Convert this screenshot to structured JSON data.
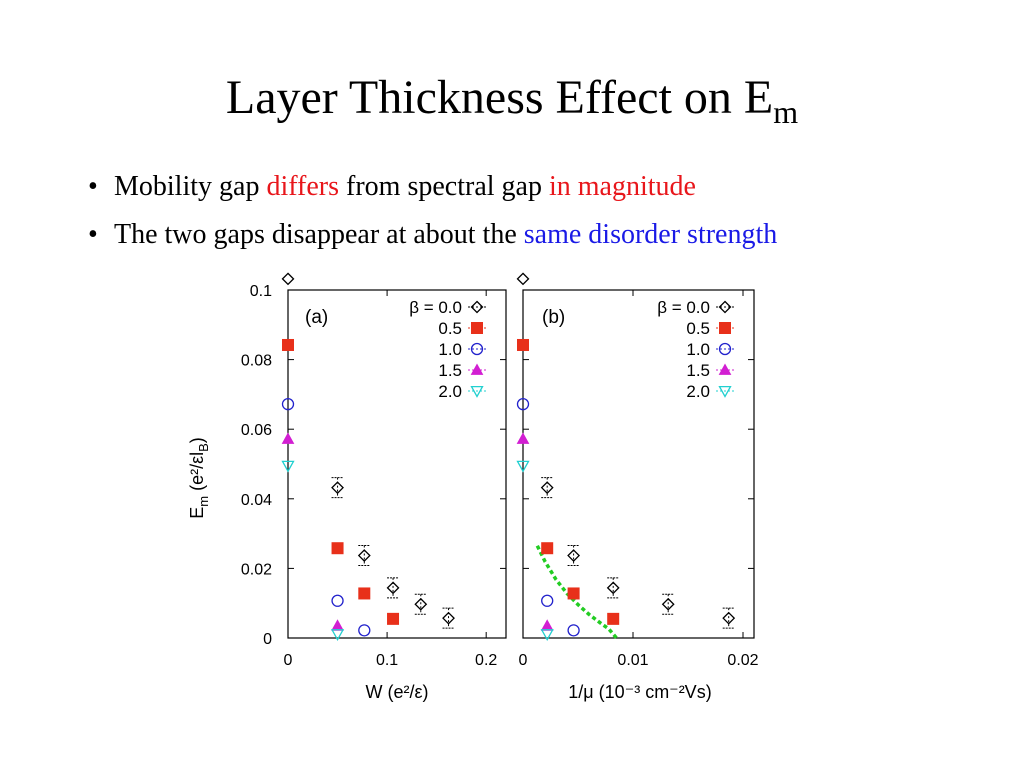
{
  "title": {
    "main": "Layer Thickness Effect on E",
    "sub": "m"
  },
  "bullets": [
    {
      "parts": [
        {
          "text": "Mobility gap ",
          "color": "#000000"
        },
        {
          "text": "differs",
          "color": "#e8161b"
        },
        {
          "text": " from spectral gap ",
          "color": "#000000"
        },
        {
          "text": "in magnitude",
          "color": "#e8161b"
        }
      ]
    },
    {
      "parts": [
        {
          "text": "The two gaps disappear at about the ",
          "color": "#000000"
        },
        {
          "text": "same disorder strength",
          "color": "#1a1ae6"
        }
      ]
    }
  ],
  "chart_data": [
    {
      "type": "scatter",
      "panel_label": "(a)",
      "xlabel": "W (e²/ε)",
      "ylabel": "E",
      "ylabel_sub": "m",
      "ylabel_units": "(e²/εl",
      "ylabel_units_sub": "B",
      "ylabel_close": ")",
      "xlim": [
        0,
        0.22
      ],
      "ylim": [
        0,
        0.1
      ],
      "xticks": [
        0,
        0.1,
        0.2
      ],
      "xtick_labels": [
        "0",
        "0.1",
        "0.2"
      ],
      "yticks": [
        0,
        0.02,
        0.04,
        0.06,
        0.08,
        0.1
      ],
      "ytick_labels": [
        "0",
        "0.02",
        "0.04",
        "0.06",
        "0.08",
        "0.1"
      ],
      "series": [
        {
          "name": "β = 0.0",
          "marker": "diamond",
          "color": "#000000",
          "x": [
            0,
            0.05,
            0.077,
            0.106,
            0.134,
            0.162
          ],
          "y": [
            0.1032,
            0.0432,
            0.0237,
            0.0144,
            0.0097,
            0.0057
          ]
        },
        {
          "name": "0.5",
          "marker": "square",
          "color": "#e8301a",
          "x": [
            0,
            0.05,
            0.077,
            0.106
          ],
          "y": [
            0.0842,
            0.0258,
            0.0128,
            0.0055
          ]
        },
        {
          "name": "1.0",
          "marker": "circle",
          "color": "#2222cc",
          "x": [
            0,
            0.05,
            0.077
          ],
          "y": [
            0.0672,
            0.0107,
            0.0022
          ]
        },
        {
          "name": "1.5",
          "marker": "triangle-up",
          "color": "#d21fd2",
          "x": [
            0,
            0.05
          ],
          "y": [
            0.0572,
            0.0035
          ]
        },
        {
          "name": "2.0",
          "marker": "triangle-down",
          "color": "#22d0d0",
          "x": [
            0,
            0.05
          ],
          "y": [
            0.0495,
            0.0011
          ]
        }
      ]
    },
    {
      "type": "scatter",
      "panel_label": "(b)",
      "xlabel": "1/μ (10⁻³ cm⁻²Vs)",
      "xlim": [
        0,
        0.021
      ],
      "ylim": [
        0,
        0.1
      ],
      "xticks": [
        0,
        0.01,
        0.02
      ],
      "xtick_labels": [
        "0",
        "0.01",
        "0.02"
      ],
      "series": [
        {
          "name": "β = 0.0",
          "marker": "diamond",
          "color": "#000000",
          "x": [
            0,
            0.0022,
            0.0046,
            0.0082,
            0.0132,
            0.0187
          ],
          "y": [
            0.1032,
            0.0432,
            0.0237,
            0.0144,
            0.0097,
            0.0057
          ]
        },
        {
          "name": "0.5",
          "marker": "square",
          "color": "#e8301a",
          "x": [
            0,
            0.0022,
            0.0046,
            0.0082
          ],
          "y": [
            0.0842,
            0.0258,
            0.0128,
            0.0055
          ]
        },
        {
          "name": "1.0",
          "marker": "circle",
          "color": "#2222cc",
          "x": [
            0,
            0.0022,
            0.0046
          ],
          "y": [
            0.0672,
            0.0107,
            0.0022
          ]
        },
        {
          "name": "1.5",
          "marker": "triangle-up",
          "color": "#d21fd2",
          "x": [
            0,
            0.0022
          ],
          "y": [
            0.0572,
            0.0035
          ]
        },
        {
          "name": "2.0",
          "marker": "triangle-down",
          "color": "#22d0d0",
          "x": [
            0,
            0.0022
          ],
          "y": [
            0.0495,
            0.0011
          ]
        }
      ],
      "fit_curve": {
        "color": "#22cc22",
        "style": "dashed",
        "x": [
          0.0013,
          0.002,
          0.003,
          0.004,
          0.005,
          0.006,
          0.007,
          0.0078,
          0.0085
        ],
        "y": [
          0.0265,
          0.022,
          0.0168,
          0.0128,
          0.0096,
          0.0068,
          0.0044,
          0.0026,
          0.0
        ]
      }
    }
  ]
}
